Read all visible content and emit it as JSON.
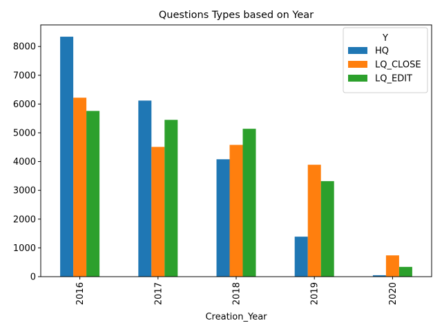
{
  "chart_data": {
    "type": "bar",
    "title": "Questions Types based on Year",
    "xlabel": "Creation_Year",
    "ylabel": "",
    "categories": [
      "2016",
      "2017",
      "2018",
      "2019",
      "2020"
    ],
    "series": [
      {
        "name": "HQ",
        "color": "#1f77b4",
        "values": [
          8340,
          6120,
          4080,
          1390,
          50
        ]
      },
      {
        "name": "LQ_CLOSE",
        "color": "#ff7f0e",
        "values": [
          6220,
          4510,
          4580,
          3890,
          740
        ]
      },
      {
        "name": "LQ_EDIT",
        "color": "#2ca02c",
        "values": [
          5760,
          5450,
          5140,
          3320,
          340
        ]
      }
    ],
    "ylim": [
      0,
      8750
    ],
    "yticks": [
      "0",
      "1000",
      "2000",
      "3000",
      "4000",
      "5000",
      "6000",
      "7000",
      "8000"
    ],
    "legend": {
      "title": "Y",
      "location": "top-right"
    },
    "grid": false
  }
}
